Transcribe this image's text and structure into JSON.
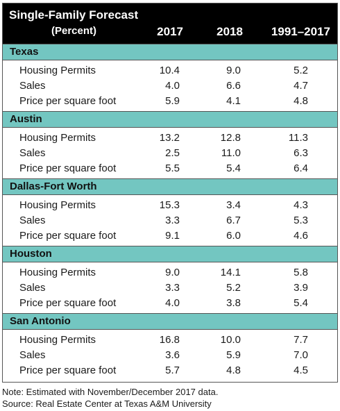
{
  "header": {
    "title": "Single-Family Forecast",
    "subtitle": "(Percent)",
    "columns": [
      "2017",
      "2018",
      "1991–2017"
    ]
  },
  "sections": [
    {
      "name": "Texas",
      "rows": [
        {
          "label": "Housing Permits",
          "values": [
            "10.4",
            "9.0",
            "5.2"
          ]
        },
        {
          "label": "Sales",
          "values": [
            "4.0",
            "6.6",
            "4.7"
          ]
        },
        {
          "label": "Price per square foot",
          "values": [
            "5.9",
            "4.1",
            "4.8"
          ]
        }
      ]
    },
    {
      "name": "Austin",
      "rows": [
        {
          "label": "Housing Permits",
          "values": [
            "13.2",
            "12.8",
            "11.3"
          ]
        },
        {
          "label": "Sales",
          "values": [
            "2.5",
            "11.0",
            "6.3"
          ]
        },
        {
          "label": "Price per square foot",
          "values": [
            "5.5",
            "5.4",
            "6.4"
          ]
        }
      ]
    },
    {
      "name": "Dallas-Fort Worth",
      "rows": [
        {
          "label": "Housing Permits",
          "values": [
            "15.3",
            "3.4",
            "4.3"
          ]
        },
        {
          "label": "Sales",
          "values": [
            "3.3",
            "6.7",
            "5.3"
          ]
        },
        {
          "label": "Price per square foot",
          "values": [
            "9.1",
            "6.0",
            "4.6"
          ]
        }
      ]
    },
    {
      "name": "Houston",
      "rows": [
        {
          "label": "Housing Permits",
          "values": [
            "9.0",
            "14.1",
            "5.8"
          ]
        },
        {
          "label": "Sales",
          "values": [
            "3.3",
            "5.2",
            "3.9"
          ]
        },
        {
          "label": "Price per square foot",
          "values": [
            "4.0",
            "3.8",
            "5.4"
          ]
        }
      ]
    },
    {
      "name": "San Antonio",
      "rows": [
        {
          "label": "Housing Permits",
          "values": [
            "16.8",
            "10.0",
            "7.7"
          ]
        },
        {
          "label": "Sales",
          "values": [
            "3.6",
            "5.9",
            "7.0"
          ]
        },
        {
          "label": "Price per square foot",
          "values": [
            "5.7",
            "4.8",
            "4.5"
          ]
        }
      ]
    }
  ],
  "notes": {
    "note": "Note: Estimated with November/December 2017 data.",
    "source": "Source: Real Estate Center at Texas A&M University"
  },
  "colors": {
    "header_bg": "#000000",
    "section_bg": "#73c6c1"
  }
}
